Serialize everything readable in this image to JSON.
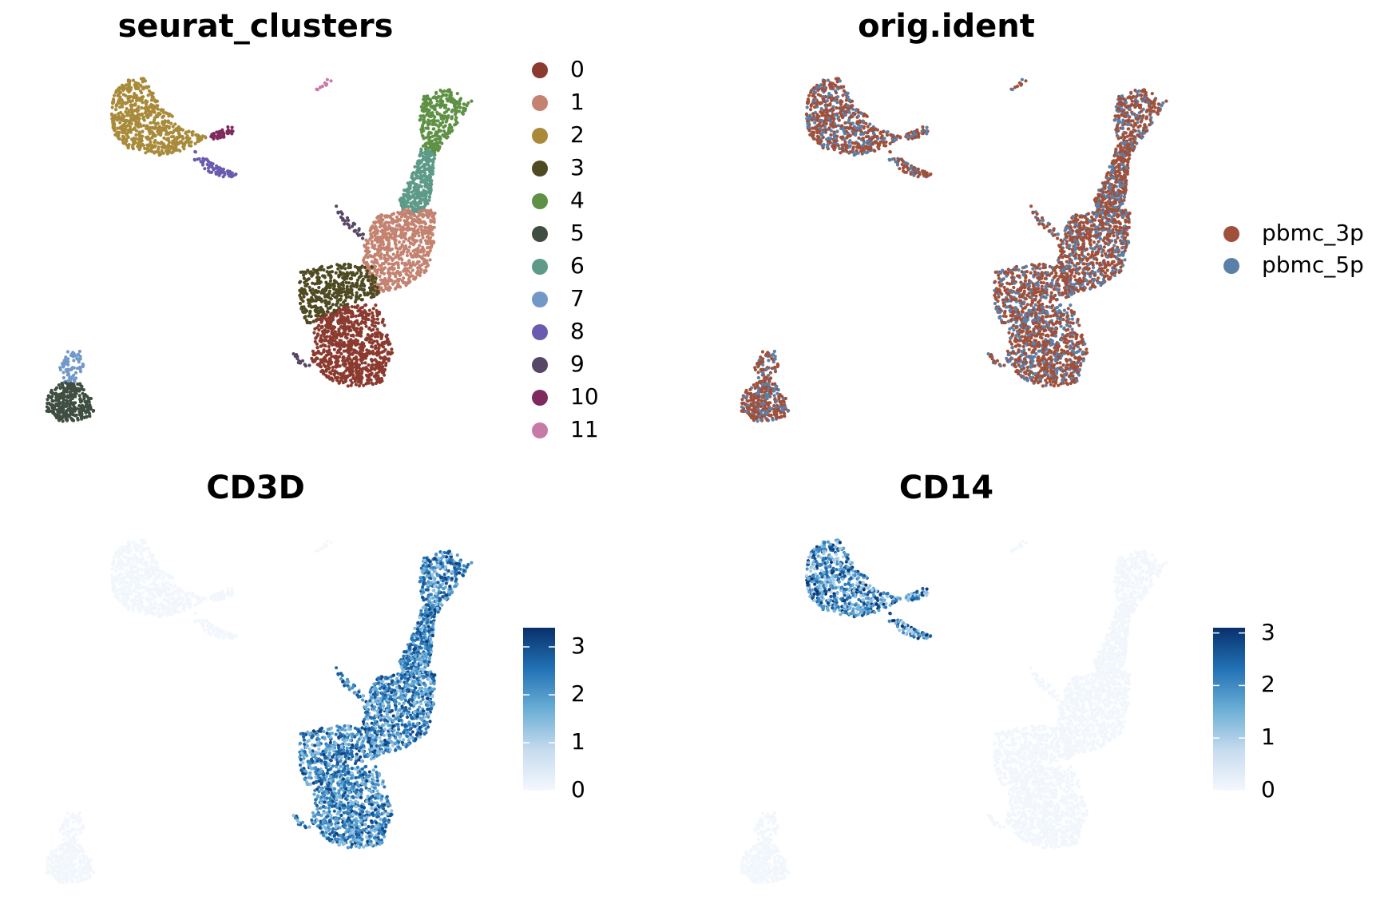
{
  "chart_data": [
    {
      "type": "scatter",
      "title": "seurat_clusters",
      "legend": {
        "placement": "right",
        "entries": [
          {
            "label": "0",
            "color": "#8B3A2F"
          },
          {
            "label": "1",
            "color": "#C48270"
          },
          {
            "label": "2",
            "color": "#A88A3A"
          },
          {
            "label": "3",
            "color": "#4E4A22"
          },
          {
            "label": "4",
            "color": "#5E9145"
          },
          {
            "label": "5",
            "color": "#3F4E40"
          },
          {
            "label": "6",
            "color": "#5E9A88"
          },
          {
            "label": "7",
            "color": "#7298C8"
          },
          {
            "label": "8",
            "color": "#6B5BAE"
          },
          {
            "label": "9",
            "color": "#574766"
          },
          {
            "label": "10",
            "color": "#7E2A5E"
          },
          {
            "label": "11",
            "color": "#C87AA6"
          }
        ]
      }
    },
    {
      "type": "scatter",
      "title": "orig.ident",
      "legend": {
        "placement": "right",
        "entries": [
          {
            "label": "pbmc_3p",
            "color": "#A0503A"
          },
          {
            "label": "pbmc_5p",
            "color": "#5A7FA8"
          }
        ]
      }
    },
    {
      "type": "scatter",
      "title": "CD3D",
      "colorbar": {
        "ticks": [
          "0",
          "1",
          "2",
          "3"
        ],
        "min": 0,
        "max": 3.4,
        "low_color": "#F4F8FD",
        "high_color": "#08306B"
      }
    },
    {
      "type": "scatter",
      "title": "CD14",
      "colorbar": {
        "ticks": [
          "0",
          "1",
          "2",
          "3"
        ],
        "min": 0,
        "max": 3.1,
        "low_color": "#F4F8FD",
        "high_color": "#08306B"
      }
    }
  ]
}
